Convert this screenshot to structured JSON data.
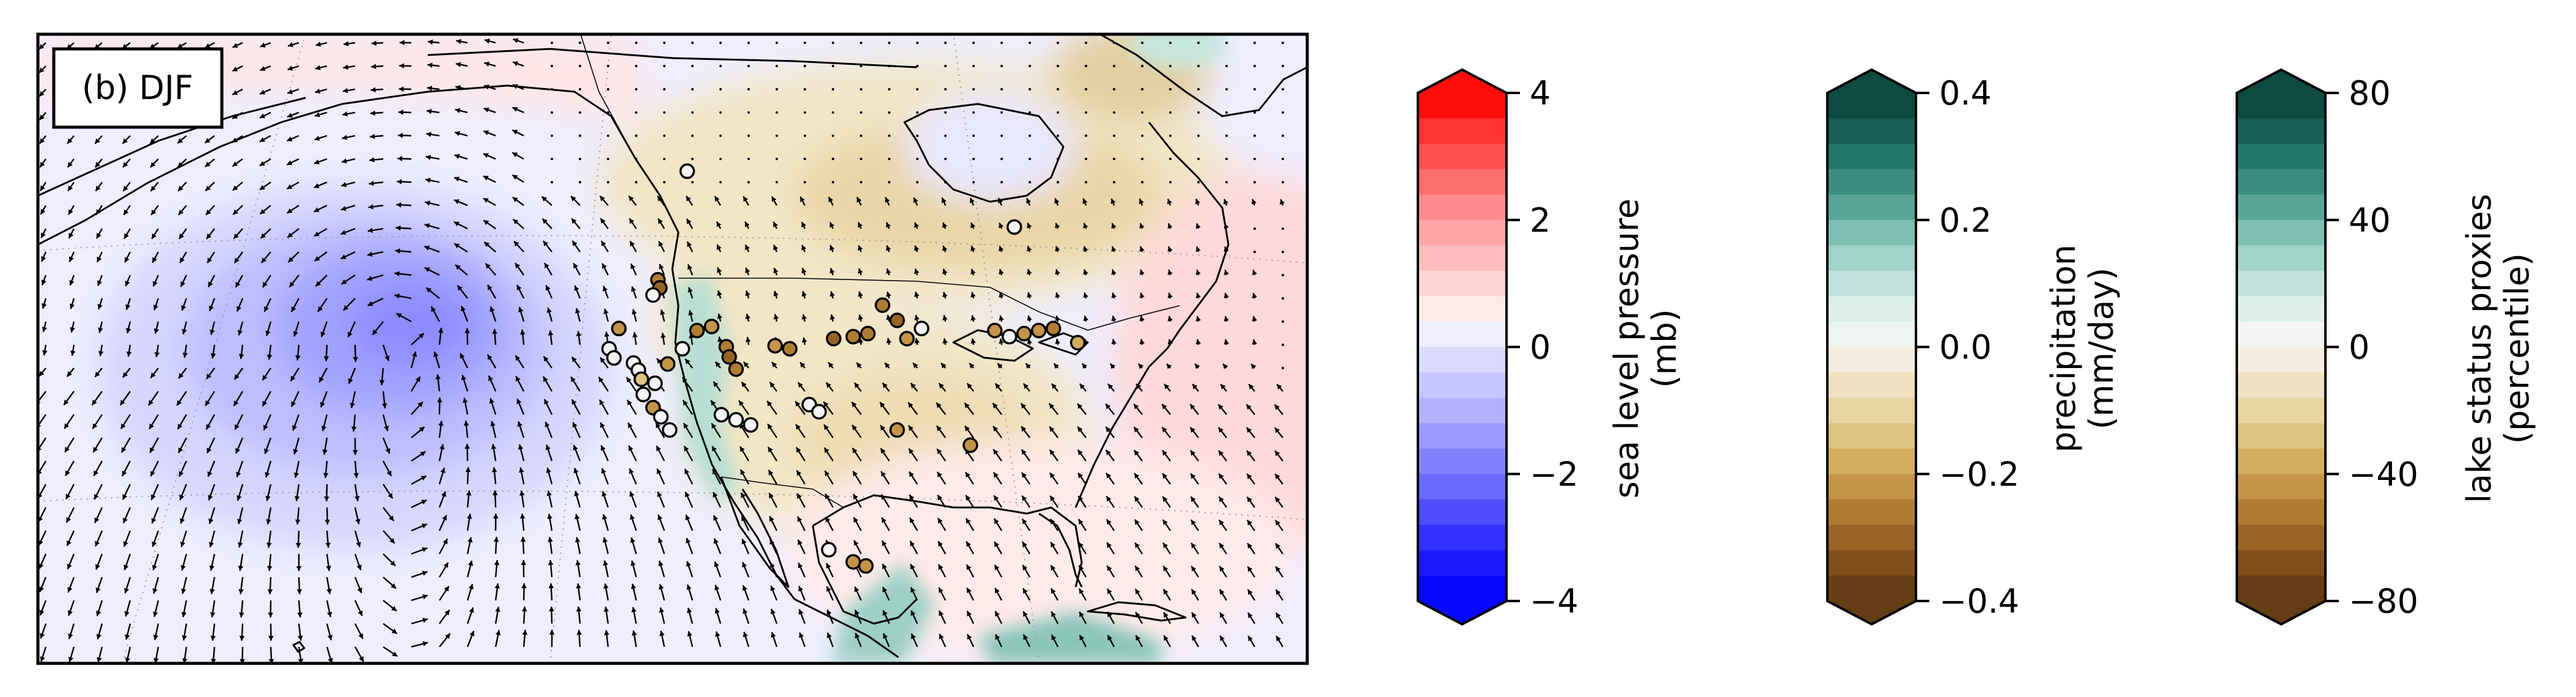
{
  "panel": {
    "label": "(b) DJF"
  },
  "colorbars": [
    {
      "id": "slp",
      "title_line1": "sea level pressure",
      "title_line2": "(mb)",
      "ticks": [
        "4",
        "2",
        "0",
        "−2",
        "−4"
      ],
      "colors": [
        "#ff0d0d",
        "#ff3333",
        "#ff5252",
        "#ff6f6f",
        "#ff8c8c",
        "#ffa6a6",
        "#ffbdbd",
        "#ffd4d4",
        "#ffe9e9",
        "#eeeeff",
        "#dadaff",
        "#c6c6ff",
        "#b2b2ff",
        "#9a9aff",
        "#8282ff",
        "#6a6aff",
        "#4e4eff",
        "#3232ff",
        "#1a1aff",
        "#0808ff"
      ]
    },
    {
      "id": "precip",
      "title_line1": "precipitation",
      "title_line2": "(mm/day)",
      "ticks": [
        "0.4",
        "0.2",
        "0.0",
        "−0.2",
        "−0.4"
      ],
      "colors": [
        "#0d4a40",
        "#175f55",
        "#23766b",
        "#3a8c80",
        "#5aa597",
        "#7fbfb1",
        "#a2d3c7",
        "#c1e2da",
        "#dcefea",
        "#eef5f2",
        "#f6efe1",
        "#efe1c1",
        "#e8d4a1",
        "#dfc380",
        "#d4ad62",
        "#c49548",
        "#b07c33",
        "#986426",
        "#7e4f1c",
        "#653d14"
      ]
    },
    {
      "id": "lake",
      "title_line1": "lake status proxies",
      "title_line2": "(percentile)",
      "ticks": [
        "80",
        "40",
        "0",
        "−40",
        "−80"
      ],
      "colors": [
        "#0d4a40",
        "#175f55",
        "#23766b",
        "#3a8c80",
        "#5aa597",
        "#7fbfb1",
        "#a2d3c7",
        "#c1e2da",
        "#dcefea",
        "#f4f4f4",
        "#f6efe1",
        "#efe1c1",
        "#e8d4a1",
        "#dfc380",
        "#d4ad62",
        "#c49548",
        "#b07c33",
        "#986426",
        "#7e4f1c",
        "#653d14"
      ]
    }
  ],
  "markers": [
    {
      "lon": -116.5,
      "lat": 47.8,
      "value": -50
    },
    {
      "lon": -116.3,
      "lat": 47.0,
      "value": -60
    },
    {
      "lon": -117.0,
      "lat": 46.3,
      "value": 30
    },
    {
      "lon": -120.5,
      "lat": 43.0,
      "value": -40
    },
    {
      "lon": -121.5,
      "lat": 41.0,
      "value": 20
    },
    {
      "lon": -121.0,
      "lat": 40.1,
      "value": 25
    },
    {
      "lon": -119.0,
      "lat": 39.6,
      "value": 10
    },
    {
      "lon": -118.5,
      "lat": 38.9,
      "value": 15
    },
    {
      "lon": -118.2,
      "lat": 38.0,
      "value": -30
    },
    {
      "lon": -116.8,
      "lat": 37.6,
      "value": 20
    },
    {
      "lon": -118.0,
      "lat": 36.5,
      "value": 30
    },
    {
      "lon": -117.0,
      "lat": 35.2,
      "value": -40
    },
    {
      "lon": -116.2,
      "lat": 34.3,
      "value": 25
    },
    {
      "lon": -115.3,
      "lat": 33.0,
      "value": 20
    },
    {
      "lon": -115.5,
      "lat": 39.5,
      "value": -40
    },
    {
      "lon": -114.0,
      "lat": 41.0,
      "value": 10
    },
    {
      "lon": -112.5,
      "lat": 42.8,
      "value": -50
    },
    {
      "lon": -111.0,
      "lat": 43.2,
      "value": -40
    },
    {
      "lon": -109.5,
      "lat": 41.2,
      "value": -55
    },
    {
      "lon": -109.2,
      "lat": 40.2,
      "value": -60
    },
    {
      "lon": -108.5,
      "lat": 39.0,
      "value": -50
    },
    {
      "lon": -104.5,
      "lat": 41.3,
      "value": -40
    },
    {
      "lon": -103.0,
      "lat": 41.0,
      "value": -50
    },
    {
      "lon": -98.5,
      "lat": 42.0,
      "value": -60
    },
    {
      "lon": -96.5,
      "lat": 42.2,
      "value": -50
    },
    {
      "lon": -95.0,
      "lat": 42.5,
      "value": -55
    },
    {
      "lon": -93.5,
      "lat": 45.3,
      "value": -50
    },
    {
      "lon": -92.0,
      "lat": 43.8,
      "value": -60
    },
    {
      "lon": -89.5,
      "lat": 43.0,
      "value": 10
    },
    {
      "lon": -91.0,
      "lat": 42.0,
      "value": -45
    },
    {
      "lon": -82.0,
      "lat": 42.8,
      "value": -40
    },
    {
      "lon": -80.5,
      "lat": 42.2,
      "value": 15
    },
    {
      "lon": -79.0,
      "lat": 42.5,
      "value": -40
    },
    {
      "lon": -77.5,
      "lat": 42.8,
      "value": -45
    },
    {
      "lon": -76.0,
      "lat": 43.0,
      "value": -50
    },
    {
      "lon": -73.5,
      "lat": 41.6,
      "value": -35
    },
    {
      "lon": -110.0,
      "lat": 34.5,
      "value": 15
    },
    {
      "lon": -108.5,
      "lat": 34.0,
      "value": 20
    },
    {
      "lon": -107.0,
      "lat": 33.5,
      "value": 25
    },
    {
      "lon": -101.0,
      "lat": 35.5,
      "value": 30
    },
    {
      "lon": -100.0,
      "lat": 34.8,
      "value": 20
    },
    {
      "lon": -92.0,
      "lat": 33.0,
      "value": -45
    },
    {
      "lon": -84.5,
      "lat": 31.5,
      "value": -40
    },
    {
      "lon": -99.0,
      "lat": 21.2,
      "value": 30
    },
    {
      "lon": -96.5,
      "lat": 20.0,
      "value": -45
    },
    {
      "lon": -95.2,
      "lat": 19.6,
      "value": -40
    },
    {
      "lon": -113.5,
      "lat": 58.5,
      "value": 30
    },
    {
      "lon": -80.0,
      "lat": 53.0,
      "value": 10
    }
  ]
}
